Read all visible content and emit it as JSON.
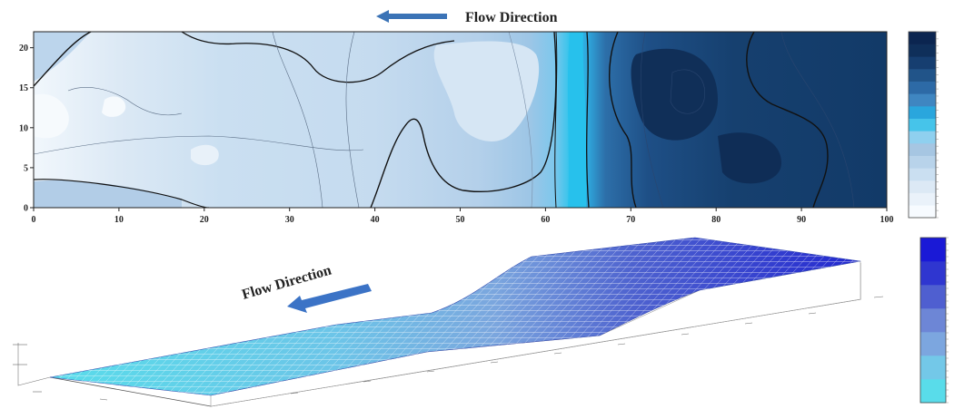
{
  "figure": {
    "top_flow_label": "Flow Direction",
    "bottom_flow_label": "Flow Direction"
  },
  "chart_data": [
    {
      "type": "heatmap",
      "subtype": "filled-contour",
      "title": "",
      "xlabel": "",
      "ylabel": "",
      "xlim": [
        0,
        100
      ],
      "ylim": [
        0,
        22
      ],
      "x_ticks": [
        "0",
        "10",
        "20",
        "30",
        "40",
        "50",
        "60",
        "70",
        "80",
        "90",
        "100"
      ],
      "y_ticks": [
        "0",
        "5",
        "10",
        "15",
        "20"
      ],
      "colorbar": {
        "colors": [
          "#f7fbff",
          "#eaf2fa",
          "#dce9f5",
          "#cadff1",
          "#b8d3ea",
          "#a6c6e2",
          "#8fd0ef",
          "#46c4ea",
          "#2aa6dd",
          "#3f86c1",
          "#2d6aa6",
          "#215489",
          "#163e70",
          "#0f2f5a",
          "#0b2550"
        ],
        "orientation": "vertical",
        "placement": "right"
      },
      "regions": [
        {
          "x_range": [
            0,
            42
          ],
          "level": "low"
        },
        {
          "x_range": [
            42,
            60
          ],
          "level": "low-medium"
        },
        {
          "x_range": [
            60,
            67
          ],
          "level": "transition"
        },
        {
          "x_range": [
            67,
            100
          ],
          "level": "high"
        }
      ]
    },
    {
      "type": "surface",
      "subtype": "3d-wireframe",
      "colorbar": {
        "colors": [
          "#59dcea",
          "#73c8e8",
          "#7ca6df",
          "#6d86d6",
          "#4f5fd0",
          "#2f36d0",
          "#1a19d6"
        ],
        "orientation": "vertical",
        "placement": "right"
      },
      "profile": "low flat left section, rising ramp in middle, elevated flat right section"
    }
  ]
}
